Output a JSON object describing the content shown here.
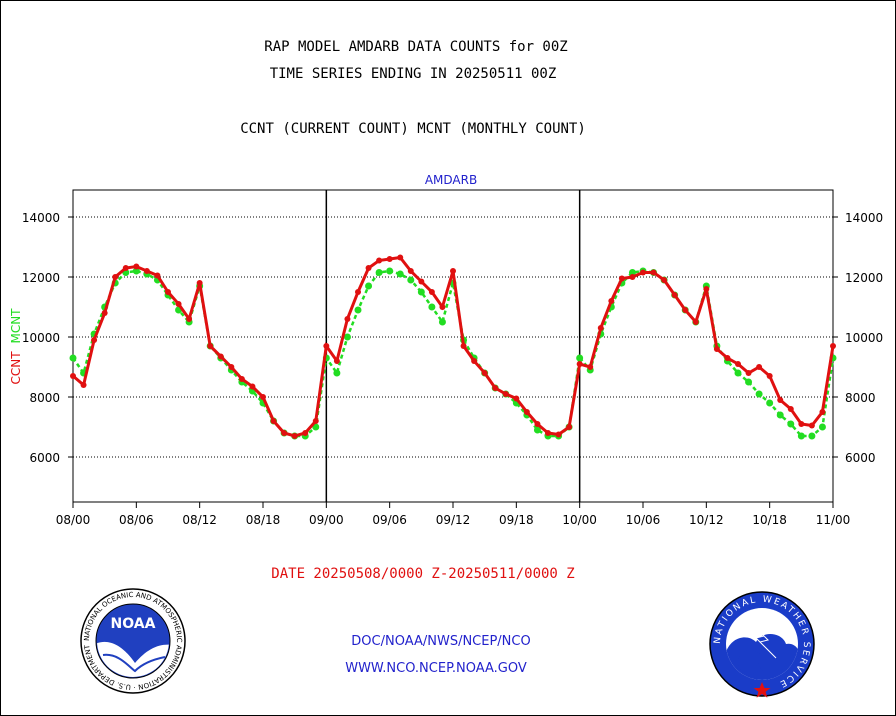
{
  "header": {
    "line1": "RAP MODEL AMDARB DATA COUNTS for 00Z",
    "line2": "TIME SERIES ENDING IN 20250511 00Z",
    "line3": "CCNT (CURRENT COUNT) MCNT (MONTHLY COUNT)"
  },
  "footer": {
    "date_range": "DATE 20250508/0000 Z-20250511/0000 Z",
    "org_line": "DOC/NOAA/NWS/NCEP/NCO",
    "url_line": "WWW.NCO.NCEP.NOAA.GOV"
  },
  "logos": {
    "noaa_text": "NOAA",
    "noaa_ring": "NATIONAL OCEANIC AND ATMOSPHERIC ADMINISTRATION · U.S. DEPARTMENT OF COMMERCE ·",
    "nws_ring": "NATIONAL WEATHER SERVICE"
  },
  "colors": {
    "ccnt": "#e01010",
    "mcnt": "#22dd22",
    "header_text": "#000000",
    "footer_blue": "#2222cc",
    "date_red": "#e01010"
  },
  "chart_data": {
    "type": "line",
    "title": "AMDARB",
    "ylabel_series": [
      "CCNT",
      "MCNT"
    ],
    "ylim": [
      4500,
      14900
    ],
    "yticks": [
      6000,
      8000,
      10000,
      12000,
      14000
    ],
    "xlim": [
      0,
      72
    ],
    "x_unit": "hours since 08/00",
    "xticks": [
      {
        "x": 0,
        "label": "08/00"
      },
      {
        "x": 6,
        "label": "08/06"
      },
      {
        "x": 12,
        "label": "08/12"
      },
      {
        "x": 18,
        "label": "08/18"
      },
      {
        "x": 24,
        "label": "09/00"
      },
      {
        "x": 30,
        "label": "09/06"
      },
      {
        "x": 36,
        "label": "09/12"
      },
      {
        "x": 42,
        "label": "09/18"
      },
      {
        "x": 48,
        "label": "10/00"
      },
      {
        "x": 54,
        "label": "10/06"
      },
      {
        "x": 60,
        "label": "10/12"
      },
      {
        "x": 66,
        "label": "10/18"
      },
      {
        "x": 72,
        "label": "11/00"
      }
    ],
    "day_dividers": [
      24,
      48
    ],
    "grid": "horizontal-dotted",
    "series": [
      {
        "name": "CCNT",
        "x": [
          0,
          1,
          2,
          3,
          4,
          5,
          6,
          7,
          8,
          9,
          10,
          11,
          12,
          13,
          14,
          15,
          16,
          17,
          18,
          19,
          20,
          21,
          22,
          23,
          24,
          25,
          26,
          27,
          28,
          29,
          30,
          31,
          32,
          33,
          34,
          35,
          36,
          37,
          38,
          39,
          40,
          41,
          42,
          43,
          44,
          45,
          46,
          47,
          48,
          49,
          50,
          51,
          52,
          53,
          54,
          55,
          56,
          57,
          58,
          59,
          60,
          61,
          62,
          63,
          64,
          65,
          66,
          67,
          68,
          69,
          70,
          71,
          72
        ],
        "values": [
          8700,
          8400,
          9900,
          10800,
          12000,
          12300,
          12350,
          12200,
          12050,
          11500,
          11100,
          10600,
          11800,
          9700,
          9350,
          9000,
          8600,
          8350,
          8000,
          7200,
          6800,
          6700,
          6800,
          7200,
          9700,
          9200,
          10600,
          11500,
          12300,
          12550,
          12600,
          12650,
          12200,
          11850,
          11500,
          11000,
          12200,
          9700,
          9200,
          8800,
          8300,
          8100,
          7950,
          7500,
          7100,
          6800,
          6750,
          7000,
          9100,
          9000,
          10300,
          11200,
          11950,
          12000,
          12150,
          12150,
          11900,
          11400,
          10900,
          10500,
          11600,
          9600,
          9300,
          9100,
          8800,
          9000,
          8700,
          7900,
          7600,
          7100,
          7050,
          7500,
          9700
        ]
      },
      {
        "name": "MCNT",
        "x": [
          0,
          1,
          2,
          3,
          4,
          5,
          6,
          7,
          8,
          9,
          10,
          11,
          12,
          13,
          14,
          15,
          16,
          17,
          18,
          19,
          20,
          21,
          22,
          23,
          24,
          25,
          26,
          27,
          28,
          29,
          30,
          31,
          32,
          33,
          34,
          35,
          36,
          37,
          38,
          39,
          40,
          41,
          42,
          43,
          44,
          45,
          46,
          47,
          48,
          49,
          50,
          51,
          52,
          53,
          54,
          55,
          56,
          57,
          58,
          59,
          60,
          61,
          62,
          63,
          64,
          65,
          66,
          67,
          68,
          69,
          70,
          71,
          72
        ],
        "values": [
          9300,
          8800,
          10100,
          11000,
          11800,
          12150,
          12200,
          12100,
          11900,
          11400,
          10900,
          10500,
          11700,
          9700,
          9300,
          8900,
          8500,
          8200,
          7800,
          7200,
          6800,
          6700,
          6700,
          7000,
          9300,
          8800,
          10000,
          10900,
          11700,
          12150,
          12200,
          12100,
          11900,
          11500,
          11000,
          10500,
          11800,
          9900,
          9300,
          8800,
          8300,
          8100,
          7800,
          7400,
          6900,
          6700,
          6700,
          7000,
          9300,
          8900,
          10100,
          11000,
          11800,
          12150,
          12200,
          12150,
          11900,
          11400,
          10900,
          10500,
          11700,
          9700,
          9200,
          8800,
          8500,
          8100,
          7800,
          7400,
          7100,
          6700,
          6700,
          7000,
          9300
        ]
      }
    ]
  }
}
